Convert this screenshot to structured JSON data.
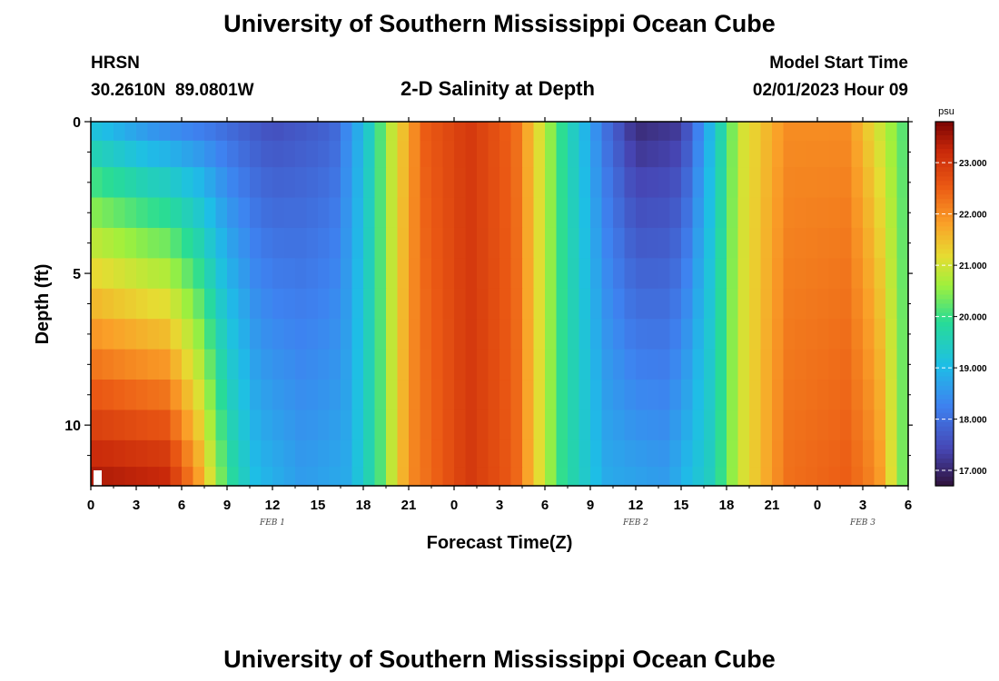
{
  "page": {
    "title": "University of Southern Mississippi Ocean Cube",
    "footer_title": "University of Southern Mississippi Ocean Cube",
    "station": "HRSN",
    "coords": "30.2610N  89.0801W",
    "subtitle": "2-D Salinity at Depth",
    "model_label": "Model Start Time",
    "model_time": "02/01/2023 Hour 09"
  },
  "chart_data": {
    "type": "heatmap",
    "title": "2-D Salinity at Depth",
    "xlabel": "Forecast Time(Z)",
    "ylabel": "Depth (ft)",
    "units": "psu",
    "x_range_hours": [
      0,
      54
    ],
    "x_tick_labels": [
      "0",
      "3",
      "6",
      "9",
      "12",
      "15",
      "18",
      "21",
      "0",
      "3",
      "6",
      "9",
      "12",
      "15",
      "18",
      "21",
      "0",
      "3",
      "6"
    ],
    "x_tick_hours": [
      0,
      3,
      6,
      9,
      12,
      15,
      18,
      21,
      24,
      27,
      30,
      33,
      36,
      39,
      42,
      45,
      48,
      51,
      54
    ],
    "day_labels": [
      {
        "text": "FEB 1",
        "hour": 12
      },
      {
        "text": "FEB 2",
        "hour": 36
      },
      {
        "text": "FEB 3",
        "hour": 51
      }
    ],
    "y_range_ft": [
      0,
      12
    ],
    "y_tick_labels": [
      "0",
      "5",
      "10"
    ],
    "y_tick_values": [
      0,
      5,
      10
    ],
    "depth_rows_ft": [
      0.25,
      1,
      2,
      3,
      4,
      5,
      6,
      7,
      8,
      9,
      10,
      11,
      11.75
    ],
    "colorbar": {
      "range": [
        16.7,
        23.8
      ],
      "tick_labels": [
        "17.000",
        "18.000",
        "19.000",
        "20.000",
        "21.000",
        "22.000",
        "23.000"
      ],
      "tick_values": [
        17,
        18,
        19,
        20,
        21,
        22,
        23
      ]
    },
    "surface_keyframes": [
      {
        "h": 0,
        "v": 19.0
      },
      {
        "h": 4,
        "v": 18.3
      },
      {
        "h": 8,
        "v": 18.0
      },
      {
        "h": 12,
        "v": 17.5
      },
      {
        "h": 16,
        "v": 17.8
      },
      {
        "h": 18,
        "v": 19.0
      },
      {
        "h": 20,
        "v": 21.0
      },
      {
        "h": 22,
        "v": 22.5
      },
      {
        "h": 25,
        "v": 23.0
      },
      {
        "h": 28,
        "v": 22.4
      },
      {
        "h": 31,
        "v": 20.0
      },
      {
        "h": 34,
        "v": 18.0
      },
      {
        "h": 36,
        "v": 17.0
      },
      {
        "h": 39,
        "v": 17.2
      },
      {
        "h": 41,
        "v": 19.0
      },
      {
        "h": 43,
        "v": 21.0
      },
      {
        "h": 46,
        "v": 22.0
      },
      {
        "h": 50,
        "v": 22.0
      },
      {
        "h": 52,
        "v": 21.0
      },
      {
        "h": 54,
        "v": 20.0
      }
    ],
    "bottom_keyframes": [
      {
        "h": 0,
        "v": 23.5
      },
      {
        "h": 5,
        "v": 23.3
      },
      {
        "h": 7,
        "v": 22.0
      },
      {
        "h": 9,
        "v": 20.0
      },
      {
        "h": 11,
        "v": 19.0
      },
      {
        "h": 14,
        "v": 18.6
      },
      {
        "h": 17,
        "v": 18.8
      },
      {
        "h": 19,
        "v": 20.0
      },
      {
        "h": 21,
        "v": 22.0
      },
      {
        "h": 25,
        "v": 23.0
      },
      {
        "h": 28,
        "v": 22.5
      },
      {
        "h": 31,
        "v": 20.0
      },
      {
        "h": 34,
        "v": 18.8
      },
      {
        "h": 38,
        "v": 18.6
      },
      {
        "h": 41,
        "v": 19.5
      },
      {
        "h": 43,
        "v": 21.0
      },
      {
        "h": 46,
        "v": 22.3
      },
      {
        "h": 50,
        "v": 22.5
      },
      {
        "h": 52,
        "v": 22.0
      },
      {
        "h": 54,
        "v": 20.0
      }
    ]
  }
}
